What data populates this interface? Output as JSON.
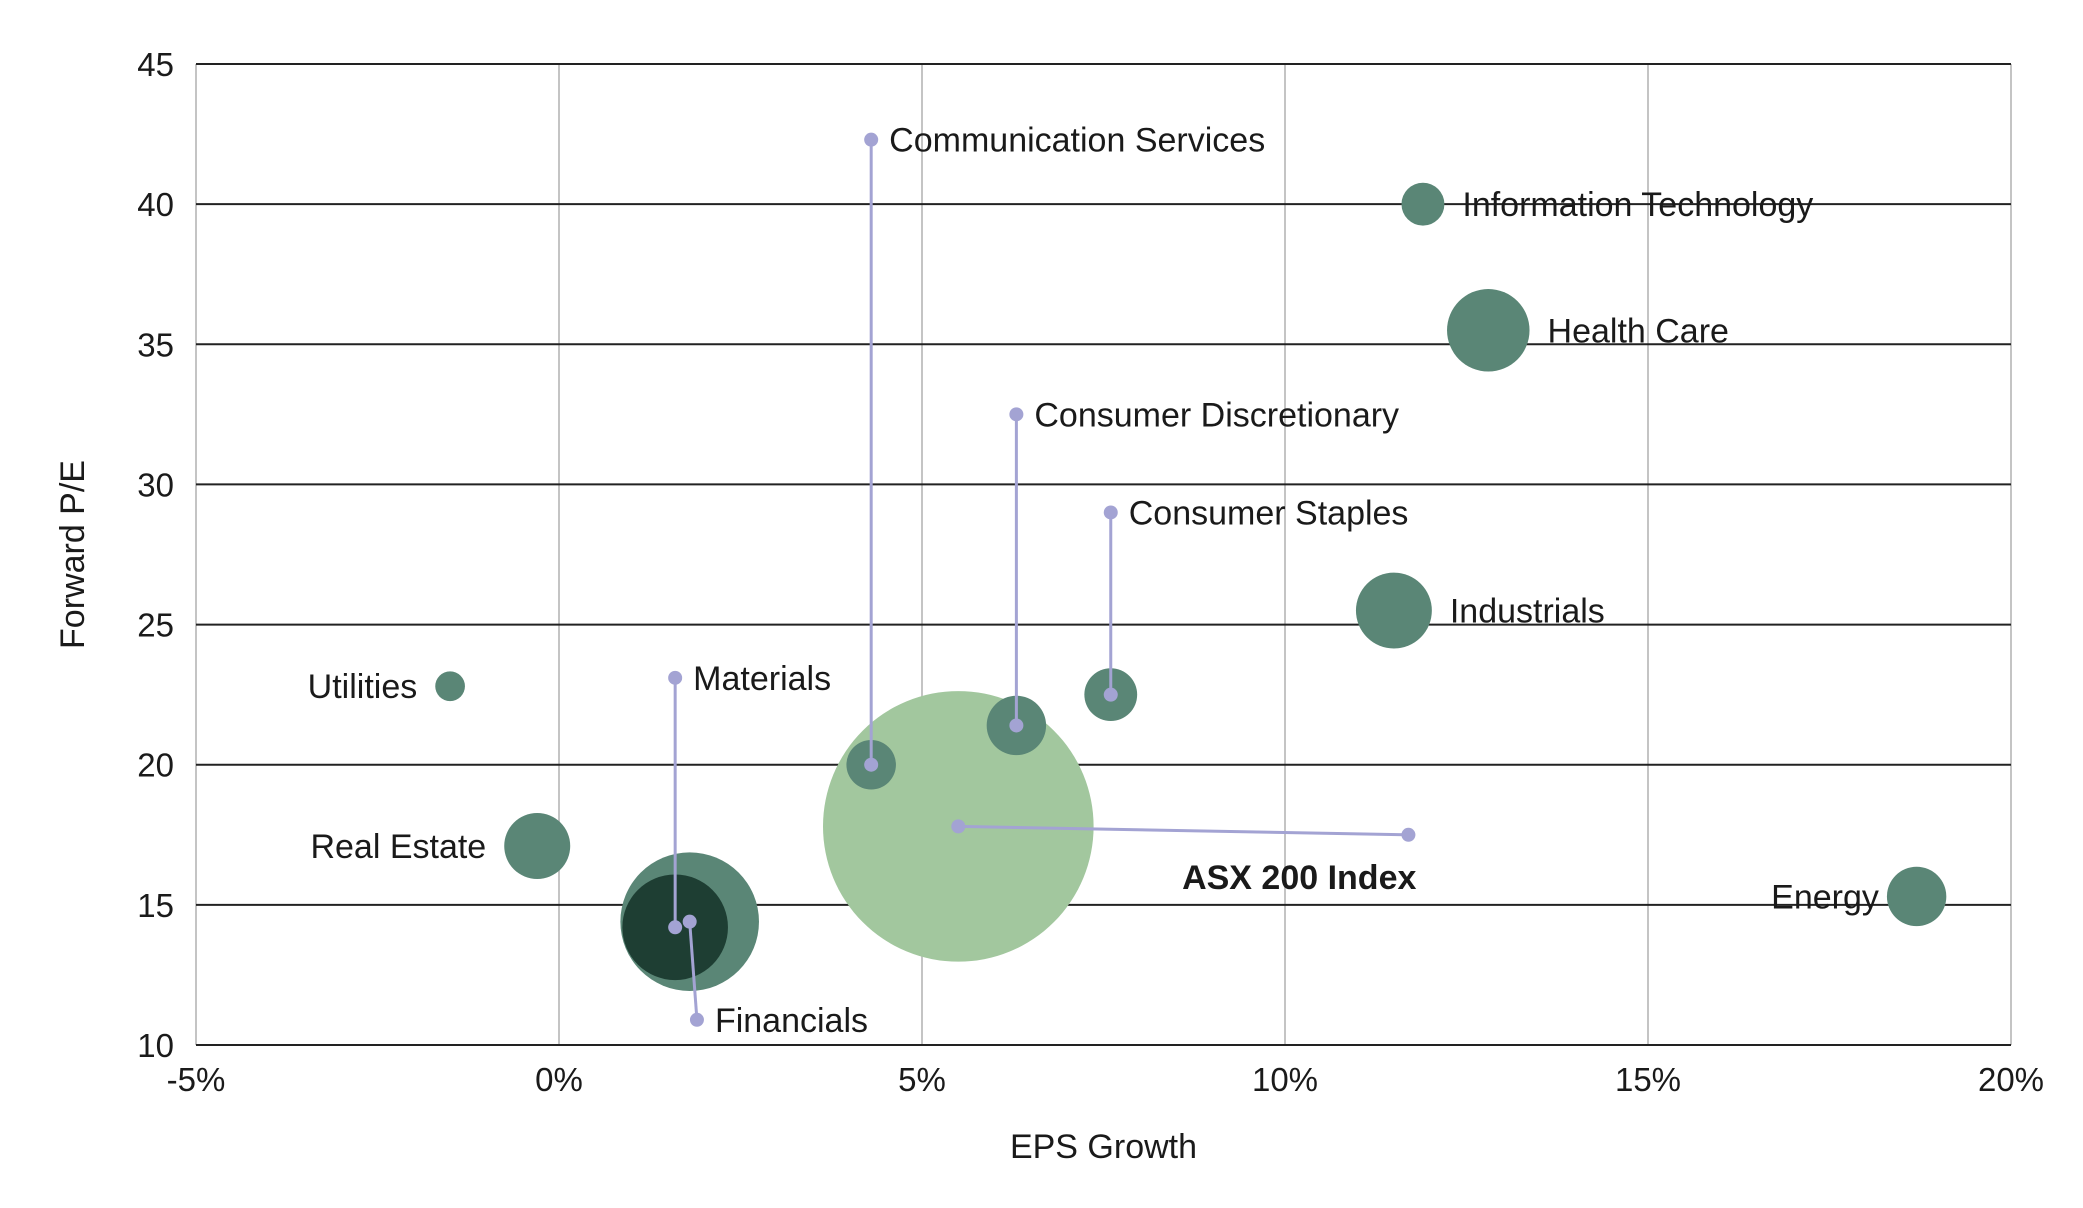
{
  "chart_data": {
    "type": "scatter",
    "xlabel": "EPS Growth",
    "ylabel": "Forward P/E",
    "xlim": [
      -5,
      20
    ],
    "ylim": [
      10,
      45
    ],
    "x_ticks": [
      -5,
      0,
      5,
      10,
      15,
      20
    ],
    "x_tick_labels": [
      "-5%",
      "0%",
      "5%",
      "10%",
      "15%",
      "20%"
    ],
    "y_ticks": [
      10,
      15,
      20,
      25,
      30,
      35,
      40,
      45
    ],
    "y_tick_labels": [
      "10",
      "15",
      "20",
      "25",
      "30",
      "35",
      "40",
      "45"
    ],
    "grid": "both",
    "colors": {
      "sector_bubble": "#5a8676",
      "index_bubble": "#a2c79e",
      "financials_inner": "#1e3e33",
      "leader_line": "#a3a3d3",
      "gridline_h": "#222222",
      "gridline_v": "#c4c4c4"
    },
    "series": [
      {
        "name": "Communication Services",
        "x": 4.3,
        "y": 20.0,
        "size": 0.75,
        "label_anchor": [
          4.3,
          42.3
        ],
        "label_side": "right"
      },
      {
        "name": "Information Technology",
        "x": 11.9,
        "y": 40.0,
        "size": 0.65,
        "label_anchor": null,
        "label_side": "right"
      },
      {
        "name": "Health Care",
        "x": 12.8,
        "y": 35.5,
        "size": 1.25,
        "label_anchor": null,
        "label_side": "right"
      },
      {
        "name": "Consumer Discretionary",
        "x": 6.3,
        "y": 21.4,
        "size": 0.9,
        "label_anchor": [
          6.3,
          32.5
        ],
        "label_side": "right"
      },
      {
        "name": "Consumer Staples",
        "x": 7.6,
        "y": 22.5,
        "size": 0.8,
        "label_anchor": [
          7.6,
          29.0
        ],
        "label_side": "right"
      },
      {
        "name": "Industrials",
        "x": 11.5,
        "y": 25.5,
        "size": 1.15,
        "label_anchor": null,
        "label_side": "right"
      },
      {
        "name": "Utilities",
        "x": -1.5,
        "y": 22.8,
        "size": 0.45,
        "label_anchor": null,
        "label_side": "left"
      },
      {
        "name": "Materials",
        "x": 1.6,
        "y": 14.2,
        "size": 1.6,
        "label_anchor": [
          1.6,
          23.1
        ],
        "label_side": "right"
      },
      {
        "name": "Real Estate",
        "x": -0.3,
        "y": 17.1,
        "size": 1.0,
        "label_anchor": null,
        "label_side": "left"
      },
      {
        "name": "Financials",
        "x": 1.8,
        "y": 14.4,
        "size": 2.1,
        "label_anchor": [
          1.9,
          10.9
        ],
        "label_side": "right"
      },
      {
        "name": "ASX 200 Index",
        "x": 5.5,
        "y": 17.8,
        "size": 4.1,
        "label_anchor": [
          11.7,
          17.5
        ],
        "label_side": "left",
        "bold": true
      },
      {
        "name": "Energy",
        "x": 18.7,
        "y": 15.3,
        "size": 0.9,
        "label_anchor": null,
        "label_side": "left"
      }
    ]
  }
}
